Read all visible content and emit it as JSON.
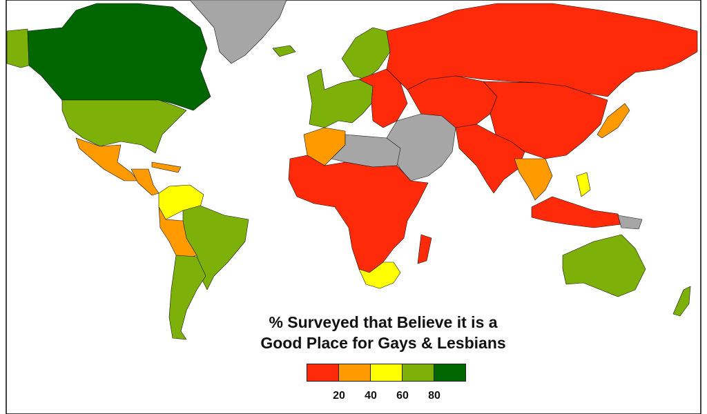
{
  "legend": {
    "title_line1": "% Surveyed that Believe it is a",
    "title_line2": "Good Place for Gays & Lesbians",
    "classes": [
      {
        "color": "#ff2a0a"
      },
      {
        "color": "#ff9a00"
      },
      {
        "color": "#ffff00"
      },
      {
        "color": "#7db10a"
      },
      {
        "color": "#006600"
      }
    ],
    "ticks": [
      "20",
      "40",
      "60",
      "80"
    ]
  },
  "colors": {
    "no_data": "#a6a6a6",
    "ocean": "#ffffff",
    "border": "#111111"
  },
  "regions": {
    "canada": {
      "value_class": 4
    },
    "alaska": {
      "value_class": 3
    },
    "usa": {
      "value_class": 3
    },
    "mexico": {
      "value_class": 1
    },
    "central_america": {
      "value_class": 1
    },
    "venezuela_colombia": {
      "value_class": 2
    },
    "brazil": {
      "value_class": 3
    },
    "peru_bolivia": {
      "value_class": 1
    },
    "argentina_chile": {
      "value_class": 3
    },
    "greenland": {
      "value_class": -1
    },
    "iceland": {
      "value_class": 3
    },
    "scandinavia": {
      "value_class": 3
    },
    "western_europe": {
      "value_class": 3
    },
    "eastern_europe": {
      "value_class": 0
    },
    "russia": {
      "value_class": 0
    },
    "central_asia": {
      "value_class": 0
    },
    "china": {
      "value_class": 0
    },
    "india": {
      "value_class": 0
    },
    "middle_east": {
      "value_class": -1
    },
    "north_africa": {
      "value_class": 1
    },
    "sahara": {
      "value_class": -1
    },
    "sub_saharan_africa": {
      "value_class": 0
    },
    "southern_africa": {
      "value_class": 2
    },
    "madagascar": {
      "value_class": 0
    },
    "japan": {
      "value_class": 1
    },
    "southeast_asia": {
      "value_class": 1
    },
    "indonesia": {
      "value_class": 0
    },
    "philippines": {
      "value_class": 2
    },
    "australia": {
      "value_class": 3
    },
    "new_zealand": {
      "value_class": 3
    }
  }
}
